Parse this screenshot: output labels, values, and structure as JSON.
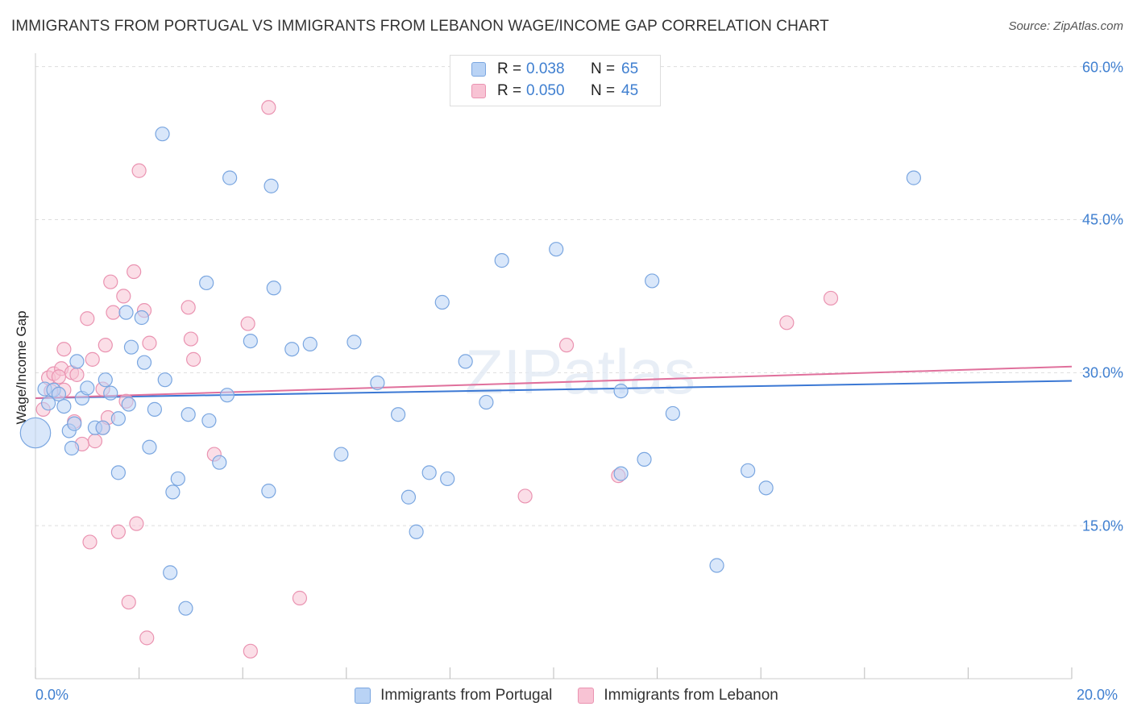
{
  "title": "IMMIGRANTS FROM PORTUGAL VS IMMIGRANTS FROM LEBANON WAGE/INCOME GAP CORRELATION CHART",
  "source": "Source: ZipAtlas.com",
  "colors": {
    "blue_fill": "#b9d3f5",
    "blue_stroke": "#7aa6e0",
    "blue_line": "#3b78d4",
    "pink_fill": "#f8c3d4",
    "pink_stroke": "#ea93b1",
    "pink_line": "#e0709c",
    "grid": "#dddddd",
    "axis_text": "#3f7fd0"
  },
  "legend": {
    "series1": {
      "r_label": "R =",
      "r_value": "0.038",
      "n_label": "N =",
      "n_value": "65"
    },
    "series2": {
      "r_label": "R =",
      "r_value": "0.050",
      "n_label": "N =",
      "n_value": "45"
    }
  },
  "bottom_legend": {
    "series1": "Immigrants from Portugal",
    "series2": "Immigrants from Lebanon"
  },
  "watermark": "ZIPatlas",
  "chart_data": {
    "type": "scatter",
    "title": "IMMIGRANTS FROM PORTUGAL VS IMMIGRANTS FROM LEBANON WAGE/INCOME GAP CORRELATION CHART",
    "xlabel": "",
    "ylabel": "Wage/Income Gap",
    "xlim": [
      0,
      20
    ],
    "ylim": [
      0,
      61
    ],
    "x_tick_labels": [
      "0.0%",
      "20.0%"
    ],
    "y_ticks": [
      15,
      30,
      45,
      60
    ],
    "y_tick_labels": [
      "15.0%",
      "30.0%",
      "45.0%",
      "60.0%"
    ],
    "grid": true,
    "series": [
      {
        "name": "Immigrants from Portugal",
        "trend": {
          "x": [
            0,
            20
          ],
          "y": [
            27.5,
            29.2
          ]
        },
        "points": [
          [
            0.0,
            24.1,
            2.2
          ],
          [
            0.18,
            28.4,
            1
          ],
          [
            0.25,
            27.0,
            1
          ],
          [
            0.35,
            28.3,
            1
          ],
          [
            0.45,
            27.9,
            1
          ],
          [
            0.55,
            26.7,
            1
          ],
          [
            0.65,
            24.3,
            1
          ],
          [
            0.7,
            22.6,
            1
          ],
          [
            0.75,
            25.0,
            1
          ],
          [
            0.8,
            31.1,
            1
          ],
          [
            0.9,
            27.5,
            1
          ],
          [
            1.0,
            28.5,
            1
          ],
          [
            1.15,
            24.6,
            1
          ],
          [
            1.3,
            24.6,
            1
          ],
          [
            1.35,
            29.3,
            1
          ],
          [
            1.45,
            28.0,
            1
          ],
          [
            1.6,
            25.5,
            1
          ],
          [
            1.75,
            35.9,
            1
          ],
          [
            1.85,
            32.5,
            1
          ],
          [
            1.8,
            26.9,
            1
          ],
          [
            2.05,
            35.4,
            1
          ],
          [
            2.1,
            31.0,
            1
          ],
          [
            2.2,
            22.7,
            1
          ],
          [
            2.3,
            26.4,
            1
          ],
          [
            2.45,
            53.4,
            1
          ],
          [
            2.5,
            29.3,
            1
          ],
          [
            2.6,
            10.4,
            1
          ],
          [
            2.65,
            18.3,
            1
          ],
          [
            2.75,
            19.6,
            1
          ],
          [
            2.9,
            6.9,
            1
          ],
          [
            2.95,
            25.9,
            1
          ],
          [
            3.3,
            38.8,
            1
          ],
          [
            3.35,
            25.3,
            1
          ],
          [
            3.55,
            21.2,
            1
          ],
          [
            3.7,
            27.8,
            1
          ],
          [
            3.75,
            49.1,
            1
          ],
          [
            1.6,
            20.2,
            1
          ],
          [
            4.15,
            33.1,
            1
          ],
          [
            4.5,
            18.4,
            1
          ],
          [
            4.55,
            48.3,
            1
          ],
          [
            4.6,
            38.3,
            1
          ],
          [
            4.95,
            32.3,
            1
          ],
          [
            5.3,
            32.8,
            1
          ],
          [
            5.9,
            22.0,
            1
          ],
          [
            6.15,
            33.0,
            1
          ],
          [
            6.6,
            29.0,
            1
          ],
          [
            7.0,
            25.9,
            1
          ],
          [
            7.2,
            17.8,
            1
          ],
          [
            7.35,
            14.4,
            1
          ],
          [
            7.6,
            20.2,
            1
          ],
          [
            7.85,
            36.9,
            1
          ],
          [
            7.95,
            19.6,
            1
          ],
          [
            8.3,
            31.1,
            1
          ],
          [
            8.7,
            27.1,
            1
          ],
          [
            9.0,
            41.0,
            1
          ],
          [
            10.05,
            42.1,
            1
          ],
          [
            11.3,
            20.1,
            1
          ],
          [
            11.3,
            28.2,
            1
          ],
          [
            11.75,
            21.5,
            1
          ],
          [
            11.9,
            39.0,
            1
          ],
          [
            12.3,
            26.0,
            1
          ],
          [
            13.15,
            11.1,
            1
          ],
          [
            13.75,
            20.4,
            1
          ],
          [
            14.1,
            18.7,
            1
          ],
          [
            16.95,
            49.1,
            1
          ]
        ]
      },
      {
        "name": "Immigrants from Lebanon",
        "trend": {
          "x": [
            0,
            20
          ],
          "y": [
            27.5,
            30.6
          ]
        },
        "points": [
          [
            0.15,
            26.4,
            1
          ],
          [
            0.25,
            29.5,
            1
          ],
          [
            0.35,
            29.9,
            1
          ],
          [
            0.5,
            30.4,
            1
          ],
          [
            0.55,
            28.3,
            1
          ],
          [
            0.55,
            32.3,
            1
          ],
          [
            0.7,
            30.0,
            1
          ],
          [
            0.75,
            25.2,
            1
          ],
          [
            0.8,
            29.8,
            1
          ],
          [
            0.9,
            23.0,
            1
          ],
          [
            1.0,
            35.3,
            1
          ],
          [
            1.05,
            13.4,
            1
          ],
          [
            1.1,
            31.3,
            1
          ],
          [
            1.15,
            23.3,
            1
          ],
          [
            1.3,
            28.4,
            1
          ],
          [
            1.3,
            24.6,
            1
          ],
          [
            1.4,
            25.6,
            1
          ],
          [
            1.45,
            38.9,
            1
          ],
          [
            1.5,
            35.9,
            1
          ],
          [
            1.6,
            14.4,
            1
          ],
          [
            1.7,
            37.5,
            1
          ],
          [
            1.75,
            27.2,
            1
          ],
          [
            1.8,
            7.5,
            1
          ],
          [
            1.9,
            39.9,
            1
          ],
          [
            1.95,
            15.2,
            1
          ],
          [
            2.0,
            49.8,
            1
          ],
          [
            2.1,
            36.1,
            1
          ],
          [
            2.15,
            4.0,
            1
          ],
          [
            2.2,
            32.9,
            1
          ],
          [
            2.95,
            36.4,
            1
          ],
          [
            3.0,
            33.3,
            1
          ],
          [
            3.05,
            31.3,
            1
          ],
          [
            3.45,
            22.0,
            1
          ],
          [
            4.1,
            34.8,
            1
          ],
          [
            4.15,
            2.7,
            1
          ],
          [
            4.5,
            56.0,
            1
          ],
          [
            5.1,
            7.9,
            1
          ],
          [
            9.45,
            17.9,
            1
          ],
          [
            10.25,
            32.7,
            1
          ],
          [
            11.25,
            19.9,
            1
          ],
          [
            14.5,
            34.9,
            1
          ],
          [
            15.35,
            37.3,
            1
          ],
          [
            0.3,
            28.2,
            1
          ],
          [
            0.45,
            29.6,
            1
          ],
          [
            1.35,
            32.7,
            1
          ]
        ]
      }
    ]
  }
}
